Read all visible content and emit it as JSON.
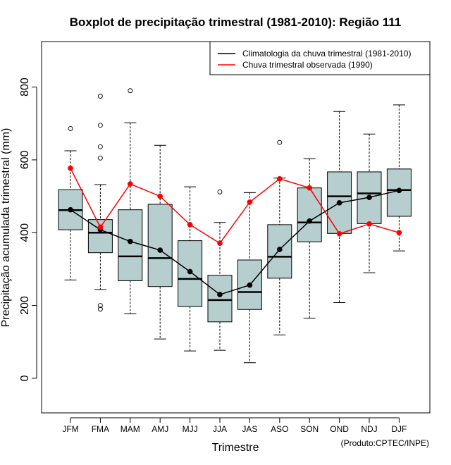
{
  "credit": "(Produto:CPTEC/INPE)",
  "chart_data": {
    "type": "boxplot",
    "title": "Boxplot de precipitação trimestral (1981-2010): Região 111",
    "xlabel": "Trimestre",
    "ylabel": "Precipitação acumulada trimestral (mm)",
    "ylim": [
      -95,
      925
    ],
    "yticks": [
      0,
      200,
      400,
      600,
      800
    ],
    "categories": [
      "JFM",
      "FMA",
      "MAM",
      "AMJ",
      "MJJ",
      "JJA",
      "JAS",
      "ASO",
      "SON",
      "OND",
      "NDJ",
      "DJF"
    ],
    "boxes": [
      {
        "whisker_low": 270,
        "q1": 408,
        "median": 462,
        "q3": 518,
        "whisker_high": 625,
        "outliers": [
          686
        ]
      },
      {
        "whisker_low": 244,
        "q1": 345,
        "median": 400,
        "q3": 436,
        "whisker_high": 532,
        "outliers": [
          775,
          695,
          636,
          605,
          200,
          190
        ]
      },
      {
        "whisker_low": 177,
        "q1": 268,
        "median": 335,
        "q3": 463,
        "whisker_high": 702,
        "outliers": [
          790
        ]
      },
      {
        "whisker_low": 108,
        "q1": 252,
        "median": 330,
        "q3": 478,
        "whisker_high": 640,
        "outliers": []
      },
      {
        "whisker_low": 75,
        "q1": 197,
        "median": 273,
        "q3": 378,
        "whisker_high": 526,
        "outliers": []
      },
      {
        "whisker_low": 77,
        "q1": 155,
        "median": 215,
        "q3": 283,
        "whisker_high": 428,
        "outliers": [
          512
        ]
      },
      {
        "whisker_low": 43,
        "q1": 189,
        "median": 237,
        "q3": 325,
        "whisker_high": 510,
        "outliers": []
      },
      {
        "whisker_low": 119,
        "q1": 275,
        "median": 334,
        "q3": 422,
        "whisker_high": 550,
        "outliers": [
          648
        ]
      },
      {
        "whisker_low": 165,
        "q1": 375,
        "median": 428,
        "q3": 523,
        "whisker_high": 603,
        "outliers": []
      },
      {
        "whisker_low": 208,
        "q1": 398,
        "median": 500,
        "q3": 567,
        "whisker_high": 733,
        "outliers": []
      },
      {
        "whisker_low": 290,
        "q1": 425,
        "median": 508,
        "q3": 567,
        "whisker_high": 671,
        "outliers": []
      },
      {
        "whisker_low": 350,
        "q1": 445,
        "median": 517,
        "q3": 575,
        "whisker_high": 751,
        "outliers": []
      }
    ],
    "series": [
      {
        "name": "Climatologia da chuva trimestral (1981-2010)",
        "color": "#000000",
        "values": [
          463,
          408,
          376,
          352,
          293,
          230,
          256,
          354,
          432,
          482,
          497,
          516
        ]
      },
      {
        "name": "Chuva trimestral observada (1990)",
        "color": "#ff0000",
        "values": [
          577,
          415,
          534,
          500,
          422,
          371,
          484,
          548,
          523,
          397,
          424,
          400
        ]
      }
    ],
    "box_fill": "#b6cece",
    "legend_position": "top-right"
  }
}
